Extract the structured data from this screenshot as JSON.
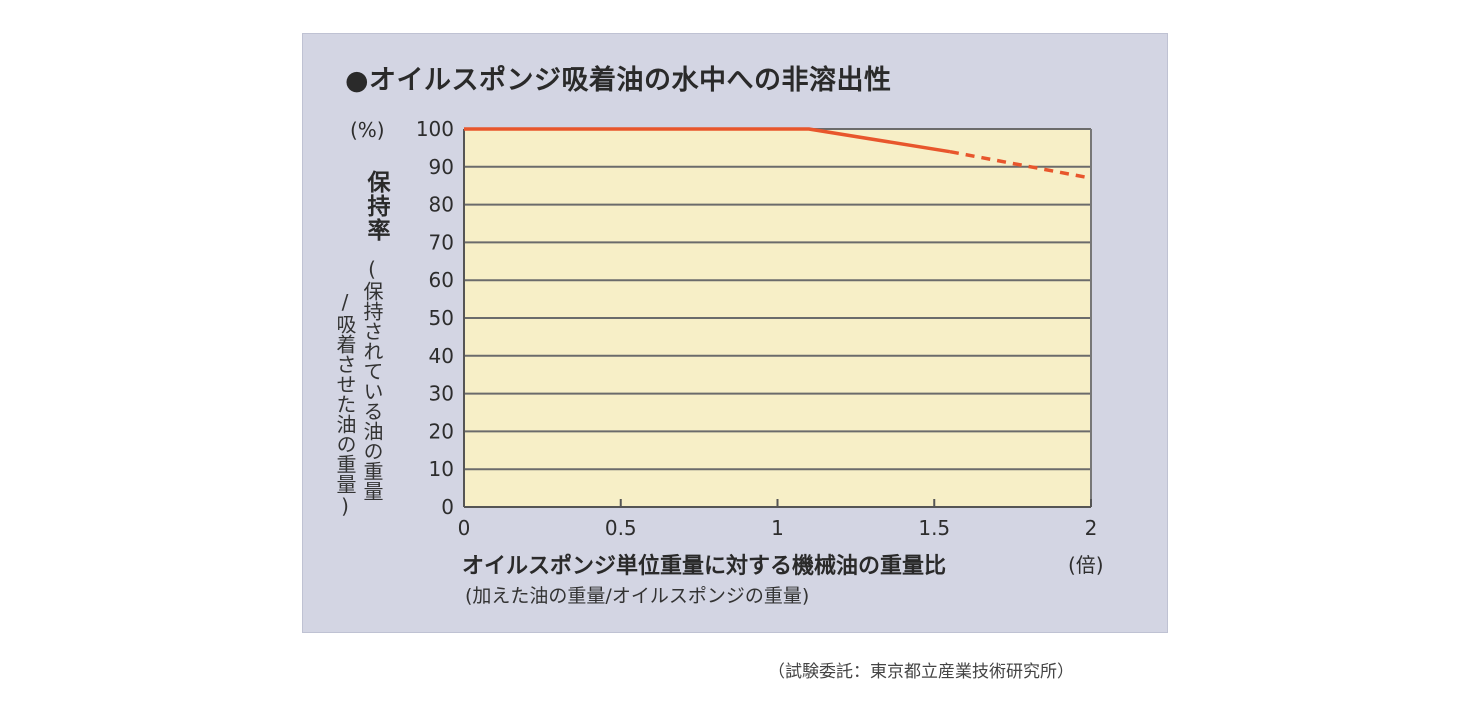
{
  "chart_data": {
    "type": "line",
    "title": "●オイルスポンジ吸着油の水中への非溶出性",
    "ylabel_main": "保持率",
    "ylabel_sub_1": "(保持されている油の重量",
    "ylabel_sub_2": "/吸着させた油の重量)",
    "y_unit": "(%)",
    "xlabel_main": "オイルスポンジ単位重量に対する機械油の重量比",
    "xlabel_sub": "(加えた油の重量/オイルスポンジの重量)",
    "x_unit": "(倍)",
    "xlim": [
      0,
      2
    ],
    "ylim": [
      0,
      100
    ],
    "x_ticks": [
      "0",
      "0.5",
      "1",
      "1.5",
      "2"
    ],
    "x_tick_values": [
      0,
      0.5,
      1,
      1.5,
      2
    ],
    "y_ticks": [
      "0",
      "10",
      "20",
      "30",
      "40",
      "50",
      "60",
      "70",
      "80",
      "90",
      "100"
    ],
    "y_tick_values": [
      0,
      10,
      20,
      30,
      40,
      50,
      60,
      70,
      80,
      90,
      100
    ],
    "grid": true,
    "series": [
      {
        "style": "solid",
        "color": "#e8562c",
        "points": [
          [
            0,
            100
          ],
          [
            1.1,
            100
          ],
          [
            1.55,
            94
          ]
        ]
      },
      {
        "style": "dashed",
        "color": "#e8562c",
        "points": [
          [
            1.55,
            94
          ],
          [
            2.0,
            87
          ]
        ]
      }
    ]
  },
  "source_note": "（試験委託：東京都立産業技術研究所）"
}
